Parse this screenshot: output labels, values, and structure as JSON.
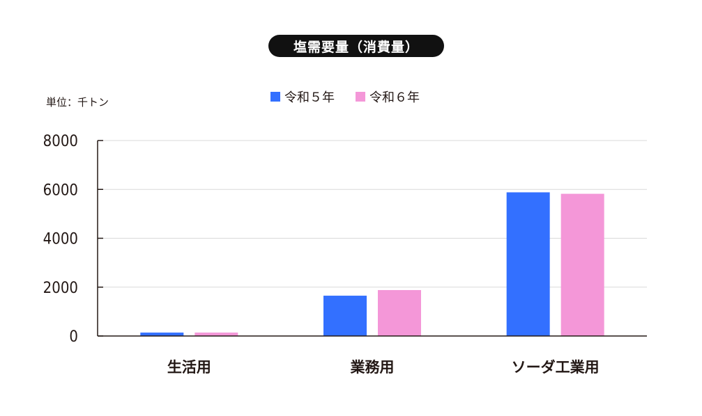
{
  "header": {
    "title": "塩需要量（消費量）",
    "unit": "単位：千トン"
  },
  "chart_data": {
    "type": "bar",
    "title": "塩需要量（消費量）",
    "ylabel": "単位：千トン",
    "categories": [
      "生活用",
      "業務用",
      "ソーダ工業用"
    ],
    "series": [
      {
        "name": "令和５年",
        "color": "#3370ff",
        "values": [
          140,
          1650,
          5880
        ]
      },
      {
        "name": "令和６年",
        "color": "#f497d8",
        "values": [
          140,
          1880,
          5820
        ]
      }
    ],
    "ylim": [
      0,
      8000
    ],
    "yticks": [
      "0",
      "2000",
      "4000",
      "6000",
      "8000"
    ],
    "grid": true,
    "legend": "top"
  }
}
